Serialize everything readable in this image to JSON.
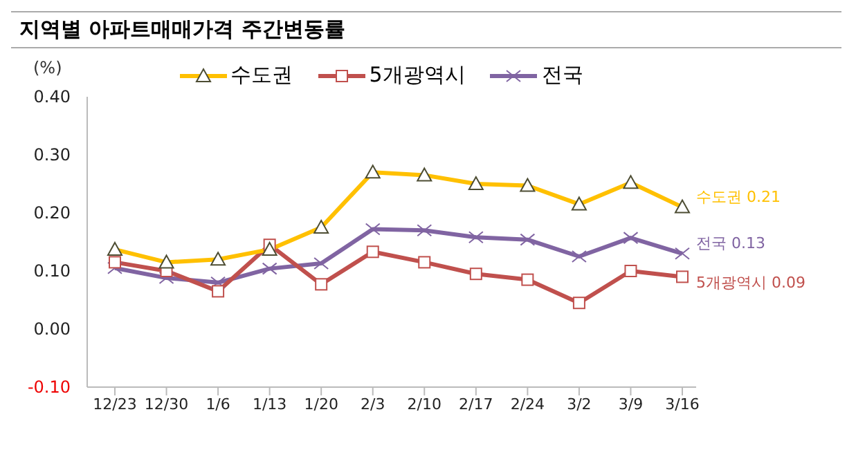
{
  "chart_data": {
    "type": "line",
    "title": "지역별 아파트매매가격 주간변동률",
    "ylabel": "(%)",
    "categories": [
      "12/23",
      "12/30",
      "1/6",
      "1/13",
      "1/20",
      "2/3",
      "2/10",
      "2/17",
      "2/24",
      "3/2",
      "3/9",
      "3/16"
    ],
    "series": [
      {
        "name": "수도권",
        "color": "#ffc000",
        "marker": "triangle",
        "values": [
          0.137,
          0.115,
          0.12,
          0.137,
          0.175,
          0.27,
          0.265,
          0.25,
          0.247,
          0.215,
          0.252,
          0.21
        ]
      },
      {
        "name": "5개광역시",
        "color": "#c0504d",
        "marker": "square",
        "values": [
          0.115,
          0.1,
          0.065,
          0.145,
          0.077,
          0.133,
          0.115,
          0.095,
          0.085,
          0.045,
          0.1,
          0.09
        ]
      },
      {
        "name": "전국",
        "color": "#8064a2",
        "marker": "cross",
        "values": [
          0.105,
          0.088,
          0.08,
          0.104,
          0.113,
          0.172,
          0.17,
          0.158,
          0.154,
          0.125,
          0.157,
          0.13
        ]
      }
    ],
    "annotations": [
      {
        "text": "수도권 0.21",
        "x": "3/16",
        "y": 0.21
      },
      {
        "text": "전국 0.13",
        "x": "3/16",
        "y": 0.13
      },
      {
        "text": "5개광역시 0.09",
        "x": "3/16",
        "y": 0.09
      }
    ],
    "ylim": [
      -0.1,
      0.4
    ],
    "yticks": [
      {
        "value": -0.1,
        "label": "-0.10"
      },
      {
        "value": 0,
        "label": "0.00"
      },
      {
        "value": 0.1,
        "label": "0.10"
      },
      {
        "value": 0.2,
        "label": "0.20"
      },
      {
        "value": 0.3,
        "label": "0.30"
      },
      {
        "value": 0.4,
        "label": "0.40"
      }
    ],
    "grid": false,
    "legend": "top"
  }
}
